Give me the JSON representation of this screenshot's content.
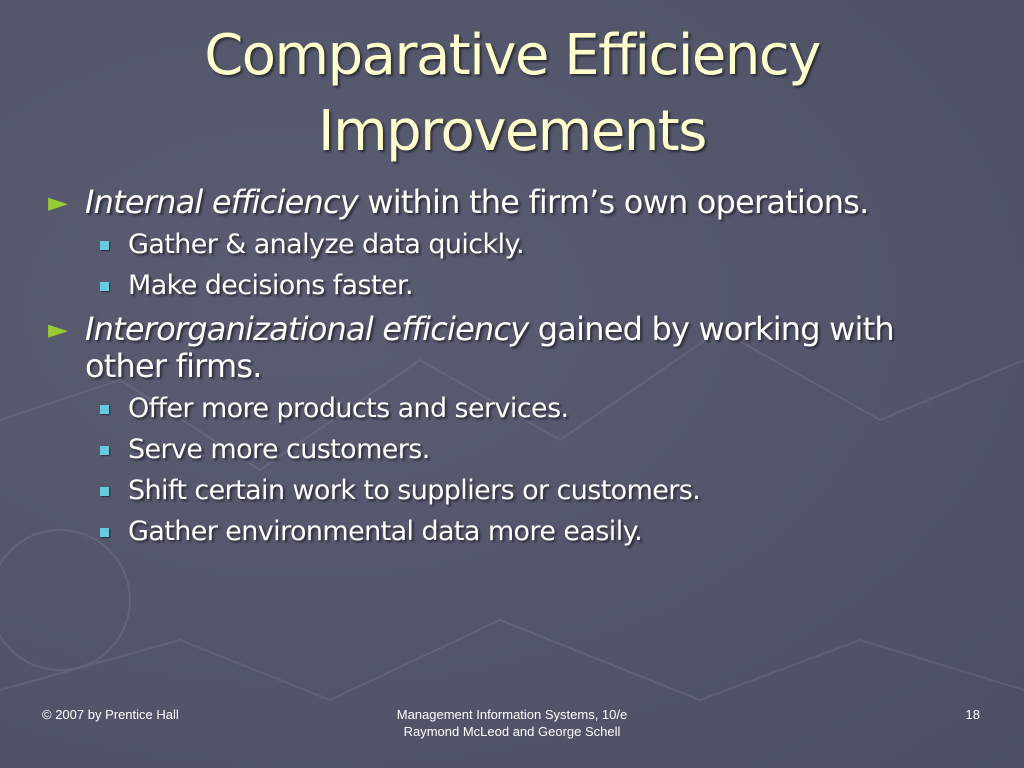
{
  "slide": {
    "title_line1": "Comparative Efficiency",
    "title_line2": "Improvements",
    "bullets": [
      {
        "emph": "Internal efficiency",
        "text": " within the firm’s own operations.",
        "sub": [
          "Gather & analyze data quickly.",
          "Make decisions faster."
        ]
      },
      {
        "emph": "Interorganizational efficiency",
        "text": " gained by working with other firms.",
        "sub": [
          "Offer more products and services.",
          "Serve more customers.",
          "Shift certain work to suppliers or customers.",
          "Gather environmental data more easily."
        ]
      }
    ],
    "arrow_glyph": "►"
  },
  "footer": {
    "left": "© 2007 by Prentice Hall",
    "center_line1": "Management Information Systems, 10/e",
    "center_line2": "Raymond McLeod and George Schell",
    "page_number": "18"
  },
  "colors": {
    "background": "#53566a",
    "title": "#ffffcc",
    "arrow_bullet": "#99cc33",
    "square_bullet": "#66ccdd"
  }
}
